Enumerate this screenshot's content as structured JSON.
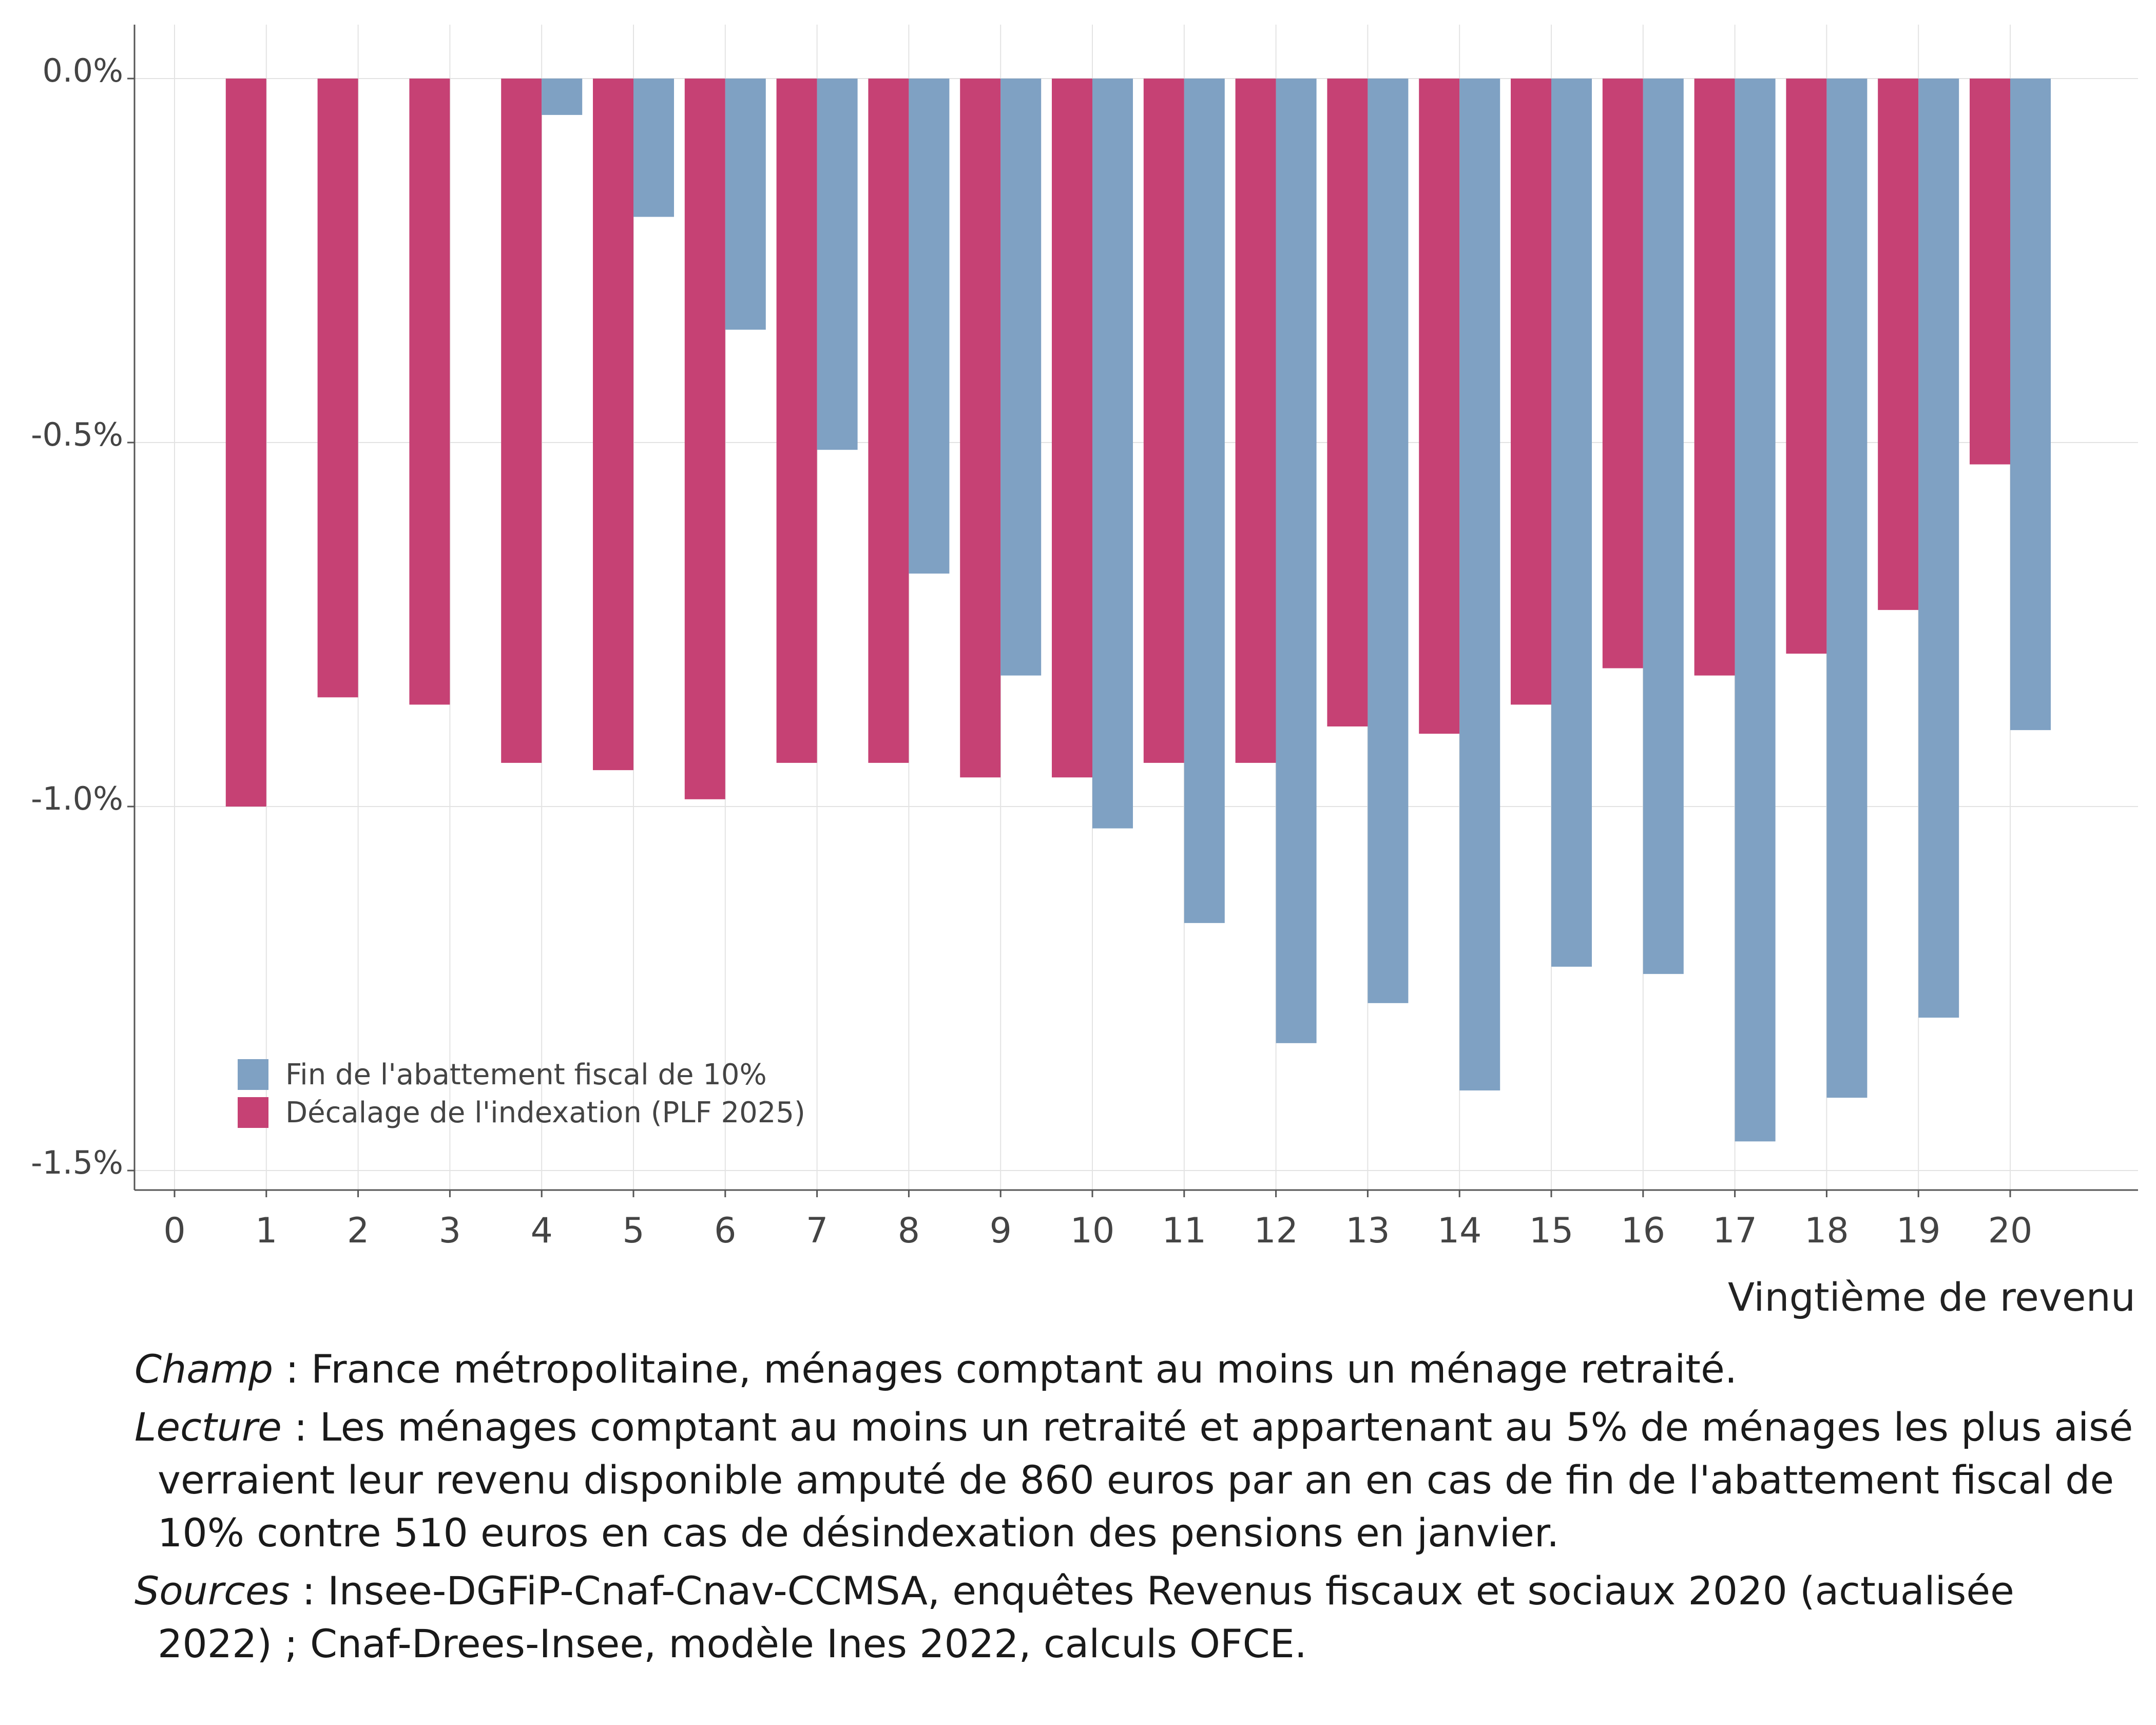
{
  "chart_data": {
    "type": "bar",
    "categories": [
      "1",
      "2",
      "3",
      "4",
      "5",
      "6",
      "7",
      "8",
      "9",
      "10",
      "11",
      "12",
      "13",
      "14",
      "15",
      "16",
      "17",
      "18",
      "19",
      "20"
    ],
    "x_ticks": [
      "0",
      "1",
      "2",
      "3",
      "4",
      "5",
      "6",
      "7",
      "8",
      "9",
      "10",
      "11",
      "12",
      "13",
      "14",
      "15",
      "16",
      "17",
      "18",
      "19",
      "20"
    ],
    "xlabel": "Vingtième de revenu",
    "ylabel": "",
    "ylim": [
      -1.5,
      0
    ],
    "y_ticks": [
      "0.0%",
      "-0.5%",
      "-1.0%",
      "-1.5%"
    ],
    "grid": true,
    "legend_position": "bottom-left",
    "series": [
      {
        "name": "Décalage de l'indexation (PLF 2025)",
        "color": "#C64174",
        "values": [
          -1.0,
          -0.85,
          -0.86,
          -0.94,
          -0.95,
          -0.99,
          -0.94,
          -0.94,
          -0.96,
          -0.96,
          -0.94,
          -0.94,
          -0.89,
          -0.9,
          -0.86,
          -0.81,
          -0.82,
          -0.79,
          -0.73,
          -0.53
        ]
      },
      {
        "name": "Fin de l'abattement fiscal de 10%",
        "color": "#7FA1C3",
        "values": [
          0.0,
          0.0,
          0.0,
          -0.05,
          -0.19,
          -0.345,
          -0.51,
          -0.68,
          -0.82,
          -1.03,
          -1.16,
          -1.325,
          -1.27,
          -1.39,
          -1.22,
          -1.23,
          -1.46,
          -1.4,
          -1.29,
          -0.895
        ]
      }
    ]
  },
  "legend": {
    "items": [
      {
        "label": "Fin de l'abattement fiscal de 10%",
        "color": "#7FA1C3"
      },
      {
        "label": "Décalage de l'indexation (PLF 2025)",
        "color": "#C64174"
      }
    ]
  },
  "notes": [
    {
      "key": "Champ",
      "text": " : France métropolitaine, ménages comptant au moins un ménage retraité."
    },
    {
      "key": "Lecture",
      "text": " :  Les ménages comptant au moins un retraité et appartenant au 5% de ménages les plus aisé verraient leur revenu disponible amputé de 860 euros par an en cas de fin de l'abattement fiscal de 10% contre 510 euros en cas de désindexation des pensions en janvier."
    },
    {
      "key": "Sources",
      "text": " : Insee-DGFiP-Cnaf-Cnav-CCMSA, enquêtes Revenus fiscaux et sociaux 2020 (actualisée 2022) ; Cnaf-Drees-Insee, modèle Ines 2022, calculs OFCE."
    }
  ]
}
